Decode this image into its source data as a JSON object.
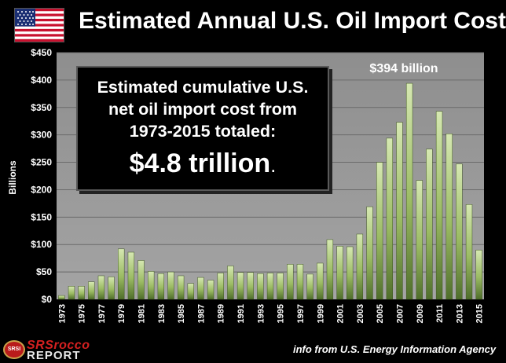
{
  "title": "Estimated Annual U.S. Oil Import Cost",
  "callout": {
    "line1": "Estimated cumulative U.S.",
    "line2": "net oil import cost from",
    "line3": "1973-2015 totaled:",
    "total": "$4.8 trillion",
    "total_suffix": "."
  },
  "peak_label": "$394 billion",
  "source": "info from U.S. Energy Information Agency",
  "logo": {
    "seal": "SRSI",
    "name": "SRSrocco",
    "report": "REPORT"
  },
  "colors": {
    "bar_top": "#d6e8b2",
    "bar_bottom": "#4f6e2a",
    "plot_bg": "#9a9a9a",
    "grid": "#6a6a6a"
  },
  "chart_data": {
    "type": "bar",
    "title": "Estimated Annual U.S. Oil Import Cost",
    "xlabel": "",
    "ylabel": "Billions",
    "ylim": [
      0,
      450
    ],
    "ytick_step": 50,
    "ytick_labels": [
      "$0",
      "$50",
      "$100",
      "$150",
      "$200",
      "$250",
      "$300",
      "$350",
      "$400",
      "$450"
    ],
    "categories": [
      "1973",
      "1974",
      "1975",
      "1976",
      "1977",
      "1978",
      "1979",
      "1980",
      "1981",
      "1982",
      "1983",
      "1984",
      "1985",
      "1986",
      "1987",
      "1988",
      "1989",
      "1990",
      "1991",
      "1992",
      "1993",
      "1994",
      "1995",
      "1996",
      "1997",
      "1998",
      "1999",
      "2000",
      "2001",
      "2002",
      "2003",
      "2004",
      "2005",
      "2006",
      "2007",
      "2008",
      "2009",
      "2010",
      "2011",
      "2012",
      "2013",
      "2014",
      "2015"
    ],
    "x_tick_labels": [
      "1973",
      "",
      "1975",
      "",
      "1977",
      "",
      "1979",
      "",
      "1981",
      "",
      "1983",
      "",
      "1985",
      "",
      "1987",
      "",
      "1989",
      "",
      "1991",
      "",
      "1993",
      "",
      "1995",
      "",
      "1997",
      "",
      "1999",
      "",
      "2001",
      "",
      "2003",
      "",
      "2005",
      "",
      "2007",
      "",
      "2009",
      "",
      "2011",
      "",
      "2013",
      "",
      "2015"
    ],
    "values": [
      7,
      24,
      24,
      32,
      43,
      41,
      92,
      86,
      71,
      51,
      47,
      50,
      43,
      29,
      40,
      35,
      48,
      61,
      49,
      49,
      47,
      48,
      48,
      64,
      64,
      46,
      66,
      109,
      97,
      96,
      119,
      169,
      250,
      294,
      323,
      394,
      217,
      274,
      343,
      302,
      247,
      173,
      90
    ],
    "grid": true
  }
}
